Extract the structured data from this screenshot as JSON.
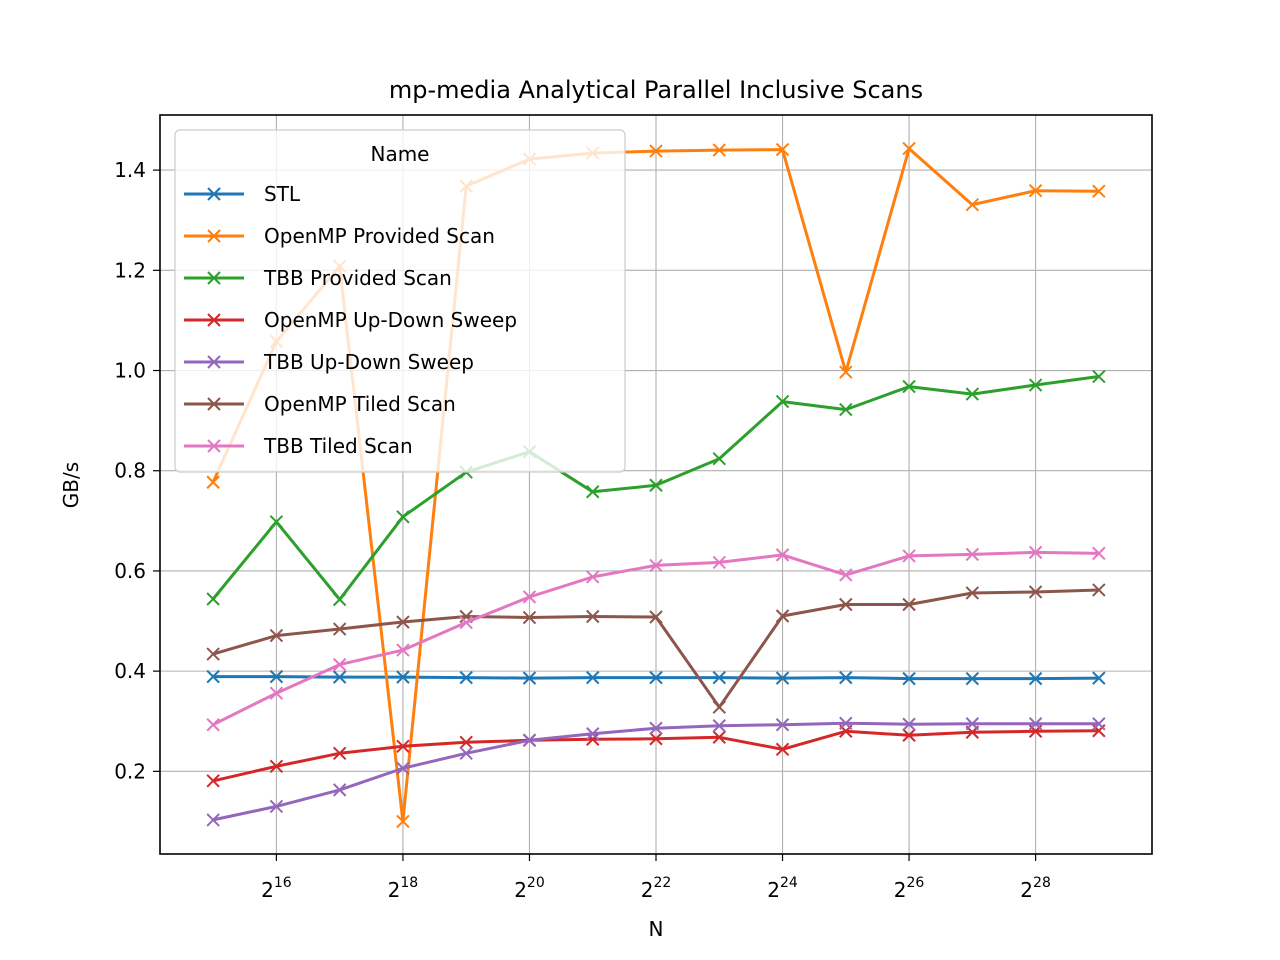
{
  "chart_data": {
    "type": "line",
    "title": "mp-media Analytical Parallel Inclusive Scans",
    "xlabel": "N",
    "ylabel": "GB/s",
    "x_scale": "log2",
    "x_exponents": [
      15,
      16,
      17,
      18,
      19,
      20,
      21,
      22,
      23,
      24,
      25,
      26,
      27,
      28,
      29
    ],
    "x_tick_exponents": [
      "16",
      "18",
      "20",
      "22",
      "24",
      "26",
      "28"
    ],
    "x_tick_base": "2",
    "xlim_exponents": [
      14.16,
      29.84
    ],
    "ylim": [
      0.035,
      1.51
    ],
    "y_ticks": [
      "0.2",
      "0.4",
      "0.6",
      "0.8",
      "1.0",
      "1.2",
      "1.4"
    ],
    "grid": true,
    "legend": {
      "title": "Name",
      "placement": "upper-left"
    },
    "marker": "x",
    "series": [
      {
        "name": "STL",
        "color": "#1f77b4",
        "values": [
          0.389,
          0.389,
          0.388,
          0.388,
          0.387,
          0.386,
          0.387,
          0.387,
          0.387,
          0.386,
          0.387,
          0.385,
          0.385,
          0.385,
          0.386
        ]
      },
      {
        "name": "OpenMP Provided Scan",
        "color": "#ff7f0e",
        "values": [
          0.777,
          1.058,
          1.208,
          0.1,
          1.368,
          1.422,
          1.434,
          1.438,
          1.44,
          1.441,
          0.997,
          1.443,
          1.331,
          1.359,
          1.358
        ]
      },
      {
        "name": "TBB Provided Scan",
        "color": "#2ca02c",
        "values": [
          0.544,
          0.698,
          0.543,
          0.708,
          0.797,
          0.838,
          0.758,
          0.771,
          0.824,
          0.938,
          0.922,
          0.968,
          0.953,
          0.971,
          0.988
        ]
      },
      {
        "name": "OpenMP Up-Down Sweep",
        "color": "#d62728",
        "values": [
          0.181,
          0.21,
          0.236,
          0.25,
          0.258,
          0.262,
          0.264,
          0.265,
          0.268,
          0.244,
          0.28,
          0.272,
          0.278,
          0.28,
          0.281
        ]
      },
      {
        "name": "TBB Up-Down Sweep",
        "color": "#9467bd",
        "values": [
          0.103,
          0.13,
          0.163,
          0.206,
          0.236,
          0.262,
          0.275,
          0.286,
          0.291,
          0.293,
          0.296,
          0.294,
          0.295,
          0.295,
          0.295
        ]
      },
      {
        "name": "OpenMP Tiled Scan",
        "color": "#8c564b",
        "values": [
          0.434,
          0.471,
          0.484,
          0.498,
          0.509,
          0.507,
          0.509,
          0.508,
          0.328,
          0.51,
          0.533,
          0.533,
          0.556,
          0.558,
          0.562
        ]
      },
      {
        "name": "TBB Tiled Scan",
        "color": "#e377c2",
        "values": [
          0.293,
          0.356,
          0.413,
          0.442,
          0.497,
          0.548,
          0.588,
          0.611,
          0.617,
          0.632,
          0.592,
          0.63,
          0.633,
          0.637,
          0.635
        ]
      }
    ]
  }
}
